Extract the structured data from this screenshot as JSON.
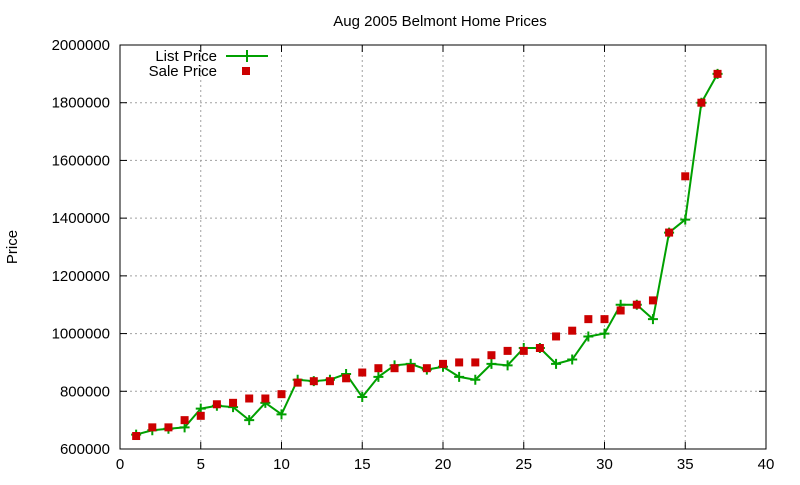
{
  "chart_data": {
    "type": "line",
    "title": "Aug 2005 Belmont Home Prices",
    "xlabel": "",
    "ylabel": "Price",
    "xlim": [
      0,
      40
    ],
    "ylim": [
      600000,
      2000000
    ],
    "x_ticks": [
      0,
      5,
      10,
      15,
      20,
      25,
      30,
      35,
      40
    ],
    "y_ticks": [
      600000,
      800000,
      1000000,
      1200000,
      1400000,
      1600000,
      1800000,
      2000000
    ],
    "grid": true,
    "legend_position": "top-left",
    "series": [
      {
        "name": "List Price",
        "style": "line-with-plus-markers",
        "color": "#00a000",
        "x": [
          1,
          2,
          3,
          4,
          5,
          6,
          7,
          8,
          9,
          10,
          11,
          12,
          13,
          14,
          15,
          16,
          17,
          18,
          19,
          20,
          21,
          22,
          23,
          24,
          25,
          26,
          27,
          28,
          29,
          30,
          31,
          32,
          33,
          34,
          35,
          36,
          37
        ],
        "y": [
          650000,
          665000,
          670000,
          675000,
          740000,
          750000,
          745000,
          700000,
          760000,
          720000,
          840000,
          835000,
          840000,
          860000,
          780000,
          850000,
          890000,
          895000,
          875000,
          885000,
          850000,
          840000,
          895000,
          890000,
          950000,
          950000,
          895000,
          910000,
          990000,
          1000000,
          1100000,
          1100000,
          1050000,
          1350000,
          1395000,
          1800000,
          1900000
        ]
      },
      {
        "name": "Sale Price",
        "style": "square-markers",
        "color": "#cc0000",
        "x": [
          1,
          2,
          3,
          4,
          5,
          6,
          7,
          8,
          9,
          10,
          11,
          12,
          13,
          14,
          15,
          16,
          17,
          18,
          19,
          20,
          21,
          22,
          23,
          24,
          25,
          26,
          27,
          28,
          29,
          30,
          31,
          32,
          33,
          34,
          35,
          36,
          37
        ],
        "y": [
          645000,
          675000,
          675000,
          700000,
          715000,
          755000,
          760000,
          775000,
          775000,
          790000,
          830000,
          835000,
          835000,
          845000,
          865000,
          880000,
          880000,
          880000,
          880000,
          895000,
          900000,
          900000,
          925000,
          940000,
          940000,
          950000,
          990000,
          1010000,
          1050000,
          1050000,
          1080000,
          1100000,
          1115000,
          1350000,
          1545000,
          1800000,
          1900000
        ]
      }
    ]
  }
}
